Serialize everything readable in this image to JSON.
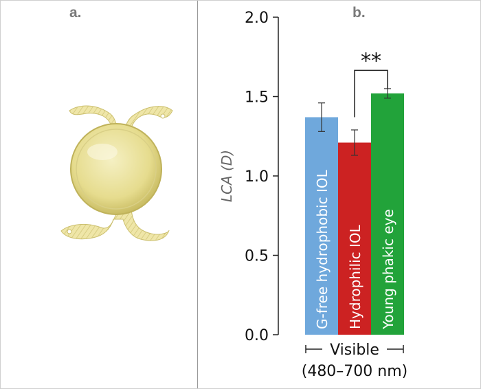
{
  "panels": {
    "left_label": "a.",
    "right_label": "b."
  },
  "colors": {
    "bar_blue": "#6fa8dc",
    "bar_red": "#cc2222",
    "bar_green": "#22a33a",
    "lens_yellow": "#efe7a5",
    "divider": "#9a9a9a"
  },
  "chart_data": {
    "type": "bar",
    "title": "",
    "ylabel": "LCA (D)",
    "xlabel_line1": "Visible",
    "xlabel_line2": "(480–700 nm)",
    "ylim": [
      0.0,
      2.0
    ],
    "yticks": [
      "0.0",
      "0.5",
      "1.0",
      "1.5",
      "2.0"
    ],
    "categories": [
      "G-free hydrophobic IOL",
      "Hydrophilic IOL",
      "Young phakic eye"
    ],
    "values": [
      1.37,
      1.21,
      1.52
    ],
    "errors": [
      0.09,
      0.08,
      0.03
    ],
    "significance": {
      "label": "**",
      "between": [
        1,
        2
      ]
    },
    "grid": false,
    "legend": "none"
  }
}
